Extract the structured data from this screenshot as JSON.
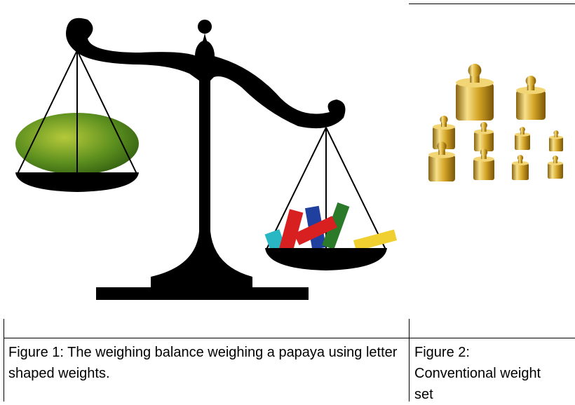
{
  "table": {
    "rows": [
      [
        {
          "caption": "Figure 1: The weighing balance weighing a papaya using letter shaped weights."
        },
        {
          "caption": "Figure 2: Conventional weight set"
        }
      ]
    ]
  }
}
